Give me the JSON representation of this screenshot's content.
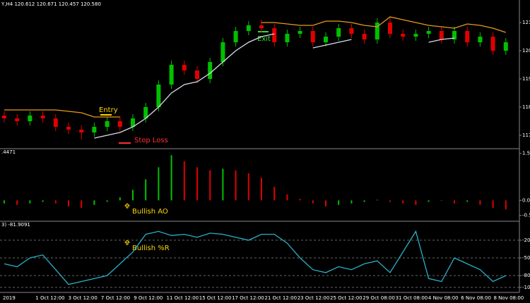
{
  "chart_data": [
    {
      "type": "candlestick",
      "title": "Y,H4 120.612 120.671 120.457 120.580",
      "open": [
        117.7,
        117.6,
        117.5,
        117.7,
        117.6,
        117.3,
        117.2,
        117.1,
        117.3,
        117.5,
        117.3,
        117.6,
        118.0,
        118.8,
        119.5,
        119.3,
        119.0,
        119.6,
        120.3,
        120.7,
        120.9,
        120.8,
        120.3,
        120.6,
        120.7,
        120.3,
        120.5,
        120.8,
        120.6,
        120.4,
        121.0,
        120.6,
        120.5,
        120.6,
        120.7,
        120.4,
        120.7,
        120.3,
        120.5,
        120.0
      ],
      "high": [
        117.85,
        117.75,
        117.85,
        117.85,
        117.75,
        117.45,
        117.35,
        117.45,
        117.65,
        117.65,
        117.75,
        118.15,
        118.95,
        119.65,
        119.65,
        119.45,
        119.75,
        120.45,
        120.85,
        121.05,
        121.1,
        120.95,
        120.75,
        120.85,
        120.85,
        120.65,
        120.95,
        120.95,
        120.75,
        121.15,
        121.2,
        120.75,
        120.75,
        120.85,
        120.85,
        120.85,
        120.85,
        120.65,
        120.65,
        120.45
      ],
      "low": [
        117.45,
        117.35,
        117.35,
        117.45,
        117.15,
        117.05,
        116.85,
        116.95,
        117.15,
        117.15,
        117.15,
        117.45,
        117.85,
        118.65,
        119.15,
        118.85,
        118.85,
        119.45,
        120.15,
        120.55,
        120.65,
        120.15,
        120.15,
        120.45,
        120.15,
        120.15,
        120.35,
        120.45,
        120.25,
        120.25,
        120.45,
        120.35,
        120.35,
        120.45,
        120.25,
        120.25,
        120.15,
        120.15,
        119.85,
        119.85
      ],
      "close": [
        117.6,
        117.5,
        117.7,
        117.6,
        117.3,
        117.2,
        117.1,
        117.3,
        117.5,
        117.3,
        117.6,
        118.0,
        118.8,
        119.5,
        119.3,
        119.0,
        119.6,
        120.3,
        120.7,
        120.9,
        120.8,
        120.3,
        120.6,
        120.7,
        120.3,
        120.5,
        120.8,
        120.6,
        120.4,
        121.0,
        120.6,
        120.5,
        120.6,
        120.7,
        120.4,
        120.7,
        120.3,
        120.5,
        120.0,
        120.3
      ],
      "up_color": "#00c000",
      "down_color": "#e00000",
      "lines": [
        {
          "color": "#e89a1c",
          "values": [
            117.9,
            117.9,
            117.9,
            117.9,
            117.9,
            117.85,
            117.8,
            117.65,
            117.65,
            117.65,
            null,
            null,
            null,
            null,
            null,
            null,
            null,
            null,
            null,
            null,
            121.0,
            121.0,
            120.95,
            120.9,
            120.9,
            121.05,
            121.05,
            121.0,
            120.9,
            120.85,
            121.2,
            121.1,
            121.0,
            120.9,
            120.85,
            120.8,
            120.95,
            120.9,
            120.8,
            120.65
          ]
        },
        {
          "color": "#d8dde8",
          "values": [
            null,
            null,
            null,
            null,
            null,
            null,
            null,
            116.9,
            117.0,
            117.1,
            117.3,
            117.6,
            118.0,
            118.5,
            118.8,
            118.9,
            119.2,
            119.6,
            120.0,
            120.3,
            120.5,
            120.6,
            null,
            null,
            120.1,
            120.2,
            120.3,
            120.4,
            null,
            null,
            null,
            null,
            null,
            120.3,
            120.4,
            120.45,
            null,
            null,
            null,
            null
          ]
        }
      ],
      "annotations": [
        "Entry",
        "Stop Loss",
        "Exit"
      ],
      "ylim": [
        116.6,
        121.6
      ],
      "yticks": [
        117,
        118,
        119,
        120,
        121
      ]
    },
    {
      "type": "histogram-ao",
      "title": ".4471",
      "values": [
        -0.1,
        -0.15,
        -0.1,
        -0.05,
        -0.1,
        -0.2,
        -0.25,
        -0.15,
        -0.05,
        0.1,
        0.35,
        0.7,
        1.1,
        1.5,
        1.3,
        1.1,
        1.0,
        1.05,
        1.0,
        0.9,
        0.75,
        0.45,
        0.2,
        0.05,
        -0.1,
        -0.2,
        -0.15,
        -0.1,
        -0.05,
        0.02,
        -0.05,
        -0.1,
        -0.15,
        -0.05,
        0.0,
        -0.1,
        -0.05,
        -0.15,
        -0.25,
        -0.3
      ],
      "up_color": "#00c000",
      "down_color": "#e00000",
      "annotations": [
        "Bullish AO"
      ],
      "ylim": [
        -0.6,
        1.6
      ],
      "yticks": [
        1.56,
        {
          "value": 0,
          "label": "0.00"
        },
        -0.5
      ]
    },
    {
      "type": "line",
      "title": "3) -81.9091",
      "values": [
        -60,
        -65,
        -50,
        -45,
        -70,
        -95,
        -90,
        -85,
        -80,
        -60,
        -40,
        -10,
        -5,
        -12,
        -10,
        -15,
        -8,
        -10,
        -15,
        -20,
        -10,
        -10,
        -25,
        -50,
        -70,
        -75,
        -65,
        -70,
        -60,
        -55,
        -75,
        -40,
        -5,
        -85,
        -90,
        -50,
        -60,
        -70,
        -90,
        -80
      ],
      "color": "#2ab0c8",
      "annotations": [
        "Bullish %R"
      ],
      "ylim": [
        -105,
        5
      ],
      "yticks": [
        -20,
        -50,
        -80,
        -100
      ],
      "grid": true,
      "x_labels": [
        "2019",
        "1 Oct 12:00",
        "3 Oct 12:00",
        "7 Oct 12:00",
        "9 Oct 12:00",
        "11 Oct 12:00",
        "15 Oct 12:00",
        "17 Oct 12:00",
        "21 Oct 12:00",
        "23 Oct 12:00",
        "25 Oct 12:00",
        "29 Oct 08:00",
        "31 Oct 08:00",
        "4 Nov 08:00",
        "6 Nov 08:00",
        "8 Nov 08:00"
      ]
    }
  ]
}
